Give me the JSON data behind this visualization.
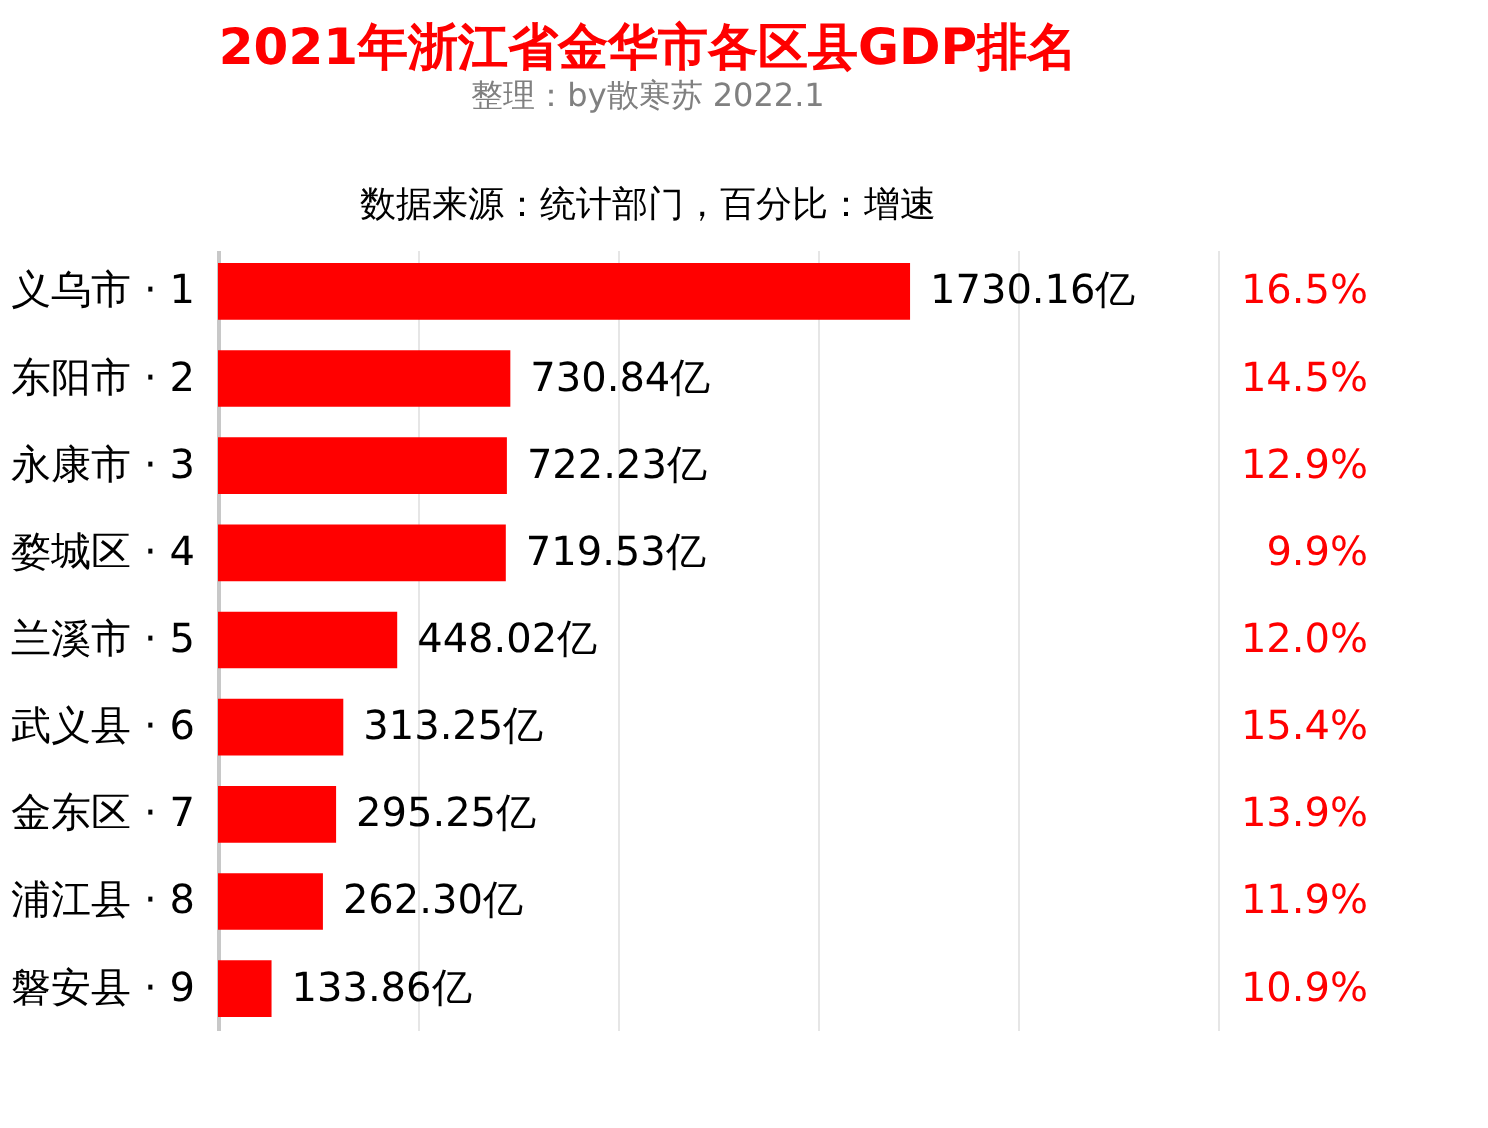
{
  "chart_data": {
    "type": "bar",
    "orientation": "horizontal",
    "title": "2021年浙江省金华市各区县GDP排名",
    "subtitle": "整理：by散寒苏  2022.1",
    "categories": [
      "义乌市 · 1",
      "东阳市 · 2",
      "永康市 · 3",
      "婺城区 · 4",
      "兰溪市 · 5",
      "武义县 · 6",
      "金东区 · 7",
      "浦江县 · 8",
      "磐安县 · 9"
    ],
    "values": [
      1730.16,
      730.84,
      722.23,
      719.53,
      448.02,
      313.25,
      295.25,
      262.3,
      133.86
    ],
    "value_labels": [
      "1730.16亿",
      "730.84亿",
      "722.23亿",
      "719.53亿",
      "448.02亿",
      "313.25亿",
      "295.25亿",
      "262.30亿",
      "133.86亿"
    ],
    "color": "#ff0000",
    "xlim": [
      0,
      2500
    ],
    "xticks": [
      {
        "value": 0,
        "label": null
      },
      {
        "value": 500,
        "label": null
      },
      {
        "value": 1000,
        "label": null
      },
      {
        "value": 1500,
        "label": null
      },
      {
        "value": 2000,
        "label": null
      },
      {
        "value": 2500,
        "label": null
      }
    ],
    "grid": "x",
    "tick_labels": "y",
    "annotations": [
      "数据来源：统计部门，百分比：增速",
      "16.5%",
      "14.5%",
      "12.9%",
      "9.9%",
      "12.0%",
      "15.4%",
      "13.9%",
      "11.9%",
      "10.9%"
    ]
  }
}
